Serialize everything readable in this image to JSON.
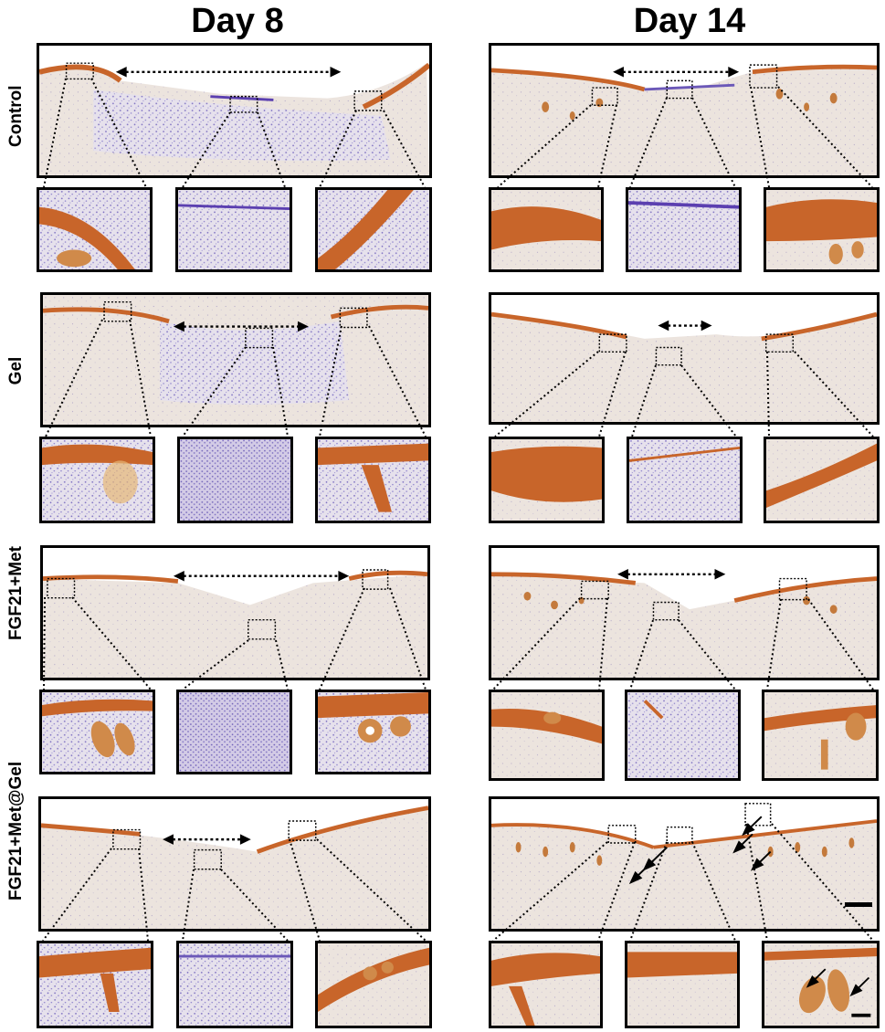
{
  "columns": [
    {
      "label": "Day 8"
    },
    {
      "label": "Day 14"
    }
  ],
  "rows": [
    {
      "label": "Control"
    },
    {
      "label": "Gel"
    },
    {
      "label": "FGF21+Met"
    },
    {
      "label": "FGF21+Met@Gel"
    }
  ],
  "colors": {
    "tissue": "#e8dfd8",
    "tissue_purple": "#b9abd6",
    "epidermis": "#c8652a",
    "follicle": "#d08a4a",
    "nuclei": "#7063b8",
    "frame": "#000000"
  }
}
